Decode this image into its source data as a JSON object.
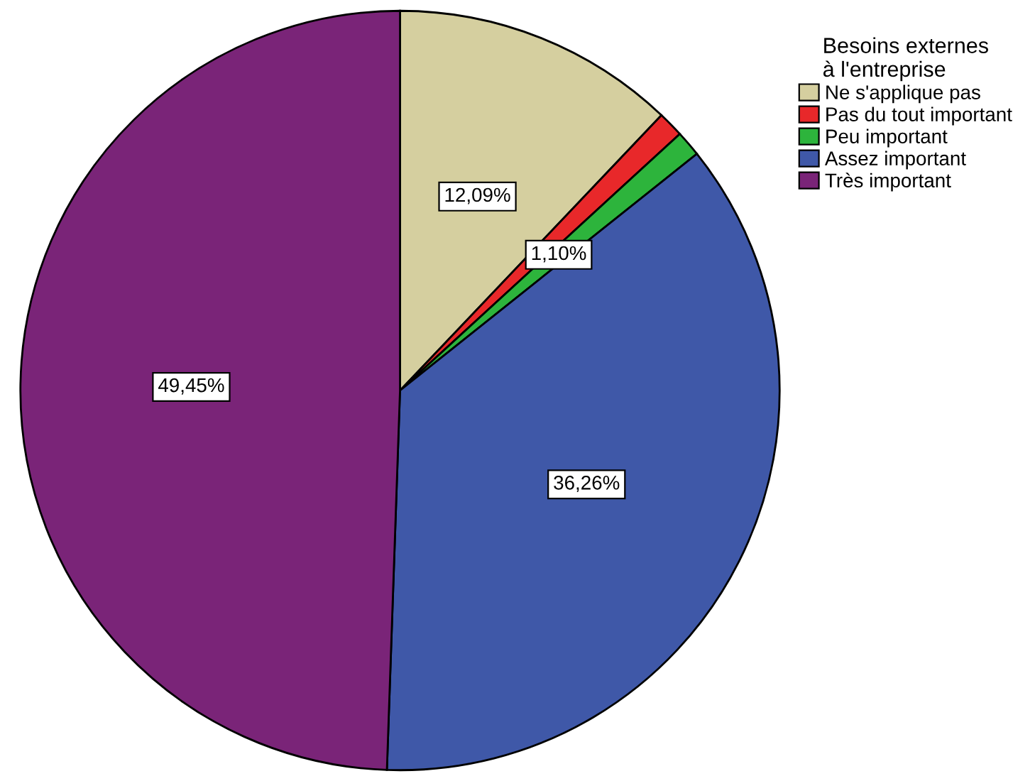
{
  "chart_data": {
    "type": "pie",
    "legend_title": "Besoins externes\nà l'entreprise",
    "categories": [
      "Ne s'applique pas",
      "Pas du tout important",
      "Peu important",
      "Assez important",
      "Très important"
    ],
    "values": [
      12.09,
      1.1,
      1.1,
      36.26,
      49.45
    ],
    "value_labels": [
      "12,09%",
      null,
      "1,10%",
      "36,26%",
      "49,45%"
    ],
    "colors": [
      "#d5cf9f",
      "#e8282a",
      "#2db43c",
      "#3f58a8",
      "#7a2478"
    ],
    "legend": "top right"
  }
}
